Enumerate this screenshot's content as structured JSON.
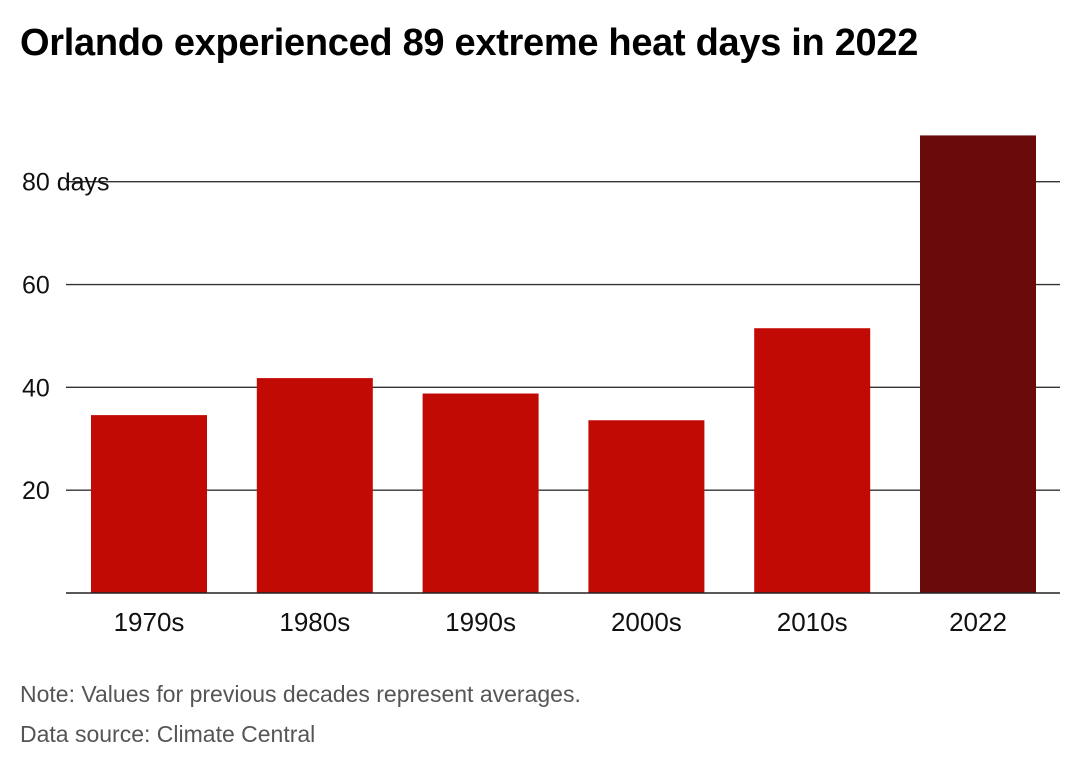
{
  "chart_data": {
    "type": "bar",
    "title": "Orlando experienced 89 extreme heat days in 2022",
    "categories": [
      "1970s",
      "1980s",
      "1990s",
      "2000s",
      "2010s",
      "2022"
    ],
    "series": [
      {
        "values": [
          34.6,
          41.8,
          38.8,
          33.6,
          51.5,
          89
        ]
      }
    ],
    "bar_colors": [
      "#c20a05",
      "#c20a05",
      "#c20a05",
      "#c20a05",
      "#c20a05",
      "#6a0a0b"
    ],
    "y_ticks": [
      {
        "value": 20,
        "label": "20"
      },
      {
        "value": 40,
        "label": "40"
      },
      {
        "value": 60,
        "label": "60"
      },
      {
        "value": 80,
        "label": "80 days"
      }
    ],
    "ylim": [
      0,
      92
    ],
    "grid": true,
    "xlabel": "",
    "ylabel": ""
  },
  "footer": {
    "note": "Note: Values for previous decades represent averages.",
    "source": "Data source: Climate Central"
  }
}
